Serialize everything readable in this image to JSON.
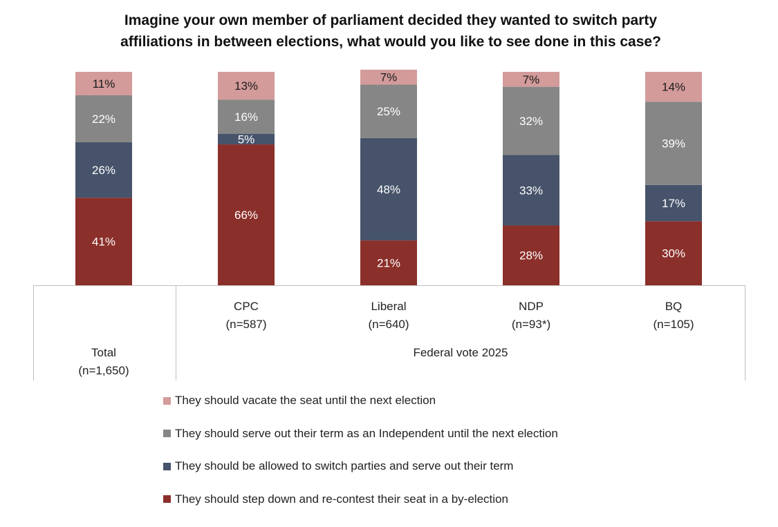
{
  "title_lines": [
    "Imagine your own member of parliament decided they wanted to switch party",
    "affiliations in between elections, what would you like to see done in this case?"
  ],
  "chart_data": {
    "type": "bar",
    "stacked": true,
    "title": "Imagine your own member of parliament decided they wanted to switch party affiliations in between elections, what would you like to see done in this case?",
    "categories": [
      {
        "label": "Total",
        "n": "(n=1,650)"
      },
      {
        "label": "CPC",
        "n": "(n=587)"
      },
      {
        "label": "Liberal",
        "n": "(n=640)"
      },
      {
        "label": "NDP",
        "n": "(n=93*)"
      },
      {
        "label": "BQ",
        "n": "(n=105)"
      }
    ],
    "group_label": "Federal vote 2025",
    "series": [
      {
        "name": "They should step down and re-contest their seat in a by-election",
        "color": "#8b2f2a",
        "values": [
          41,
          66,
          21,
          28,
          30
        ],
        "labels": [
          "41%",
          "66%",
          "21%",
          "28%",
          "30%"
        ]
      },
      {
        "name": "They should be allowed to switch parties and serve out their term",
        "color": "#46536a",
        "values": [
          26,
          5,
          48,
          33,
          17
        ],
        "labels": [
          "26%",
          "5%",
          "48%",
          "33%",
          "17%"
        ]
      },
      {
        "name": "They should serve out their term as an Independent until the next election",
        "color": "#868686",
        "values": [
          22,
          16,
          25,
          32,
          39
        ],
        "labels": [
          "22%",
          "16%",
          "25%",
          "32%",
          "39%"
        ]
      },
      {
        "name": "They should vacate the seat until the next election",
        "color": "#d49b9b",
        "values": [
          11,
          13,
          7,
          7,
          14
        ],
        "labels": [
          "11%",
          "13%",
          "7%",
          "7%",
          "14%"
        ]
      }
    ],
    "ylim": [
      0,
      100
    ],
    "xlabel": "",
    "ylabel": "",
    "legend_position": "bottom",
    "legend_order": [
      3,
      2,
      1,
      0
    ]
  }
}
